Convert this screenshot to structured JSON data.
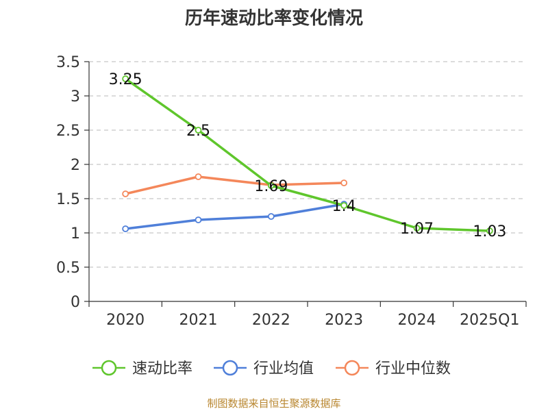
{
  "chart_data": {
    "type": "line",
    "title": "历年速动比率变化情况",
    "categories": [
      "2020",
      "2021",
      "2022",
      "2023",
      "2024",
      "2025Q1"
    ],
    "ylim": [
      0,
      3.5
    ],
    "yticks": [
      "0",
      "0.5",
      "1",
      "1.5",
      "2",
      "2.5",
      "3",
      "3.5"
    ],
    "grid": "horizontal-dashed",
    "legend_position": "bottom",
    "series": [
      {
        "name": "速动比率",
        "color": "#5fc62c",
        "values": [
          3.25,
          2.5,
          1.69,
          1.4,
          1.07,
          1.03
        ],
        "labels": [
          "3.25",
          "2.5",
          "1.69",
          "1.4",
          "1.07",
          "1.03"
        ]
      },
      {
        "name": "行业均值",
        "color": "#4f7fd9",
        "values": [
          1.06,
          1.19,
          1.24,
          1.42,
          null,
          null
        ]
      },
      {
        "name": "行业中位数",
        "color": "#f4875a",
        "values": [
          1.57,
          1.82,
          1.7,
          1.73,
          null,
          null
        ]
      }
    ]
  },
  "source": "制图数据来自恒生聚源数据库"
}
